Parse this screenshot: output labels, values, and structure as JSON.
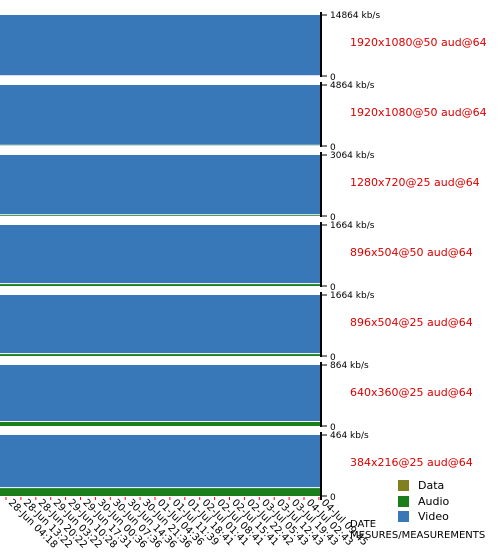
{
  "chart_data": {
    "type": "area",
    "x_axis_label_line1": "DATE",
    "x_axis_label_line2": "MESURES/MEASUREMENTS",
    "x_ticks": [
      "28-Jun 04:18",
      "28-Jun 13:22",
      "28-Jun 20:22",
      "29-Jun 03:22",
      "29-Jun 10:28",
      "29-Jun 17:31",
      "30-Jun 00:36",
      "30-Jun 07:36",
      "30-Jun 14:36",
      "30-Jun 21:36",
      "01-Jul 04:36",
      "01-Jul 11:39",
      "01-Jul 18:41",
      "02-Jul 01:41",
      "02-Jul 08:41",
      "02-Jul 15:41",
      "02-Jul 22:42",
      "03-Jul 05:43",
      "03-Jul 12:43",
      "03-Jul 19:43",
      "04-Jul 02:43",
      "04-Jul 09:45"
    ],
    "legend": [
      {
        "name": "Data",
        "color": "#808020"
      },
      {
        "name": "Audio",
        "color": "#1a7f1a"
      },
      {
        "name": "Video",
        "color": "#3878b8"
      }
    ],
    "panels": [
      {
        "profile": "1920x1080@50 aud@64",
        "ymax_label": "14864 kb/s",
        "ymin_label": "0",
        "ymax": 14864,
        "video": 14800,
        "audio": 64,
        "data": 0
      },
      {
        "profile": "1920x1080@50 aud@64",
        "ymax_label": "4864 kb/s",
        "ymin_label": "0",
        "ymax": 4864,
        "video": 4800,
        "audio": 64,
        "data": 0
      },
      {
        "profile": "1280x720@25 aud@64",
        "ymax_label": "3064 kb/s",
        "ymin_label": "0",
        "ymax": 3064,
        "video": 3000,
        "audio": 64,
        "data": 0
      },
      {
        "profile": "896x504@50 aud@64",
        "ymax_label": "1664 kb/s",
        "ymin_label": "0",
        "ymax": 1664,
        "video": 1600,
        "audio": 64,
        "data": 0
      },
      {
        "profile": "896x504@25 aud@64",
        "ymax_label": "1664 kb/s",
        "ymin_label": "0",
        "ymax": 1664,
        "video": 1600,
        "audio": 64,
        "data": 0
      },
      {
        "profile": "640x360@25 aud@64",
        "ymax_label": "864 kb/s",
        "ymin_label": "0",
        "ymax": 864,
        "video": 800,
        "audio": 64,
        "data": 0
      },
      {
        "profile": "384x216@25 aud@64",
        "ymax_label": "464 kb/s",
        "ymin_label": "0",
        "ymax": 464,
        "video": 400,
        "audio": 64,
        "data": 0
      }
    ]
  }
}
